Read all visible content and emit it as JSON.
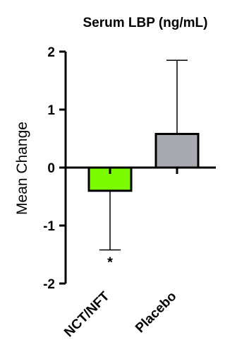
{
  "chart_data": {
    "type": "bar",
    "title": "Serum LBP (ng/mL)",
    "xlabel": "",
    "ylabel": "Mean Change",
    "categories": [
      "NCT/NFT",
      "Placebo"
    ],
    "values": [
      -0.4,
      0.58
    ],
    "error_bars": [
      1.02,
      1.27
    ],
    "error_direction": [
      "down",
      "up"
    ],
    "colors": [
      "#7CFC00",
      "#A9A9B0"
    ],
    "ylim": [
      -2,
      2
    ],
    "yticks": [
      -2,
      -1,
      0,
      1,
      2
    ],
    "grid": false,
    "annotations": [
      {
        "category": "NCT/NFT",
        "text": "*"
      }
    ]
  }
}
